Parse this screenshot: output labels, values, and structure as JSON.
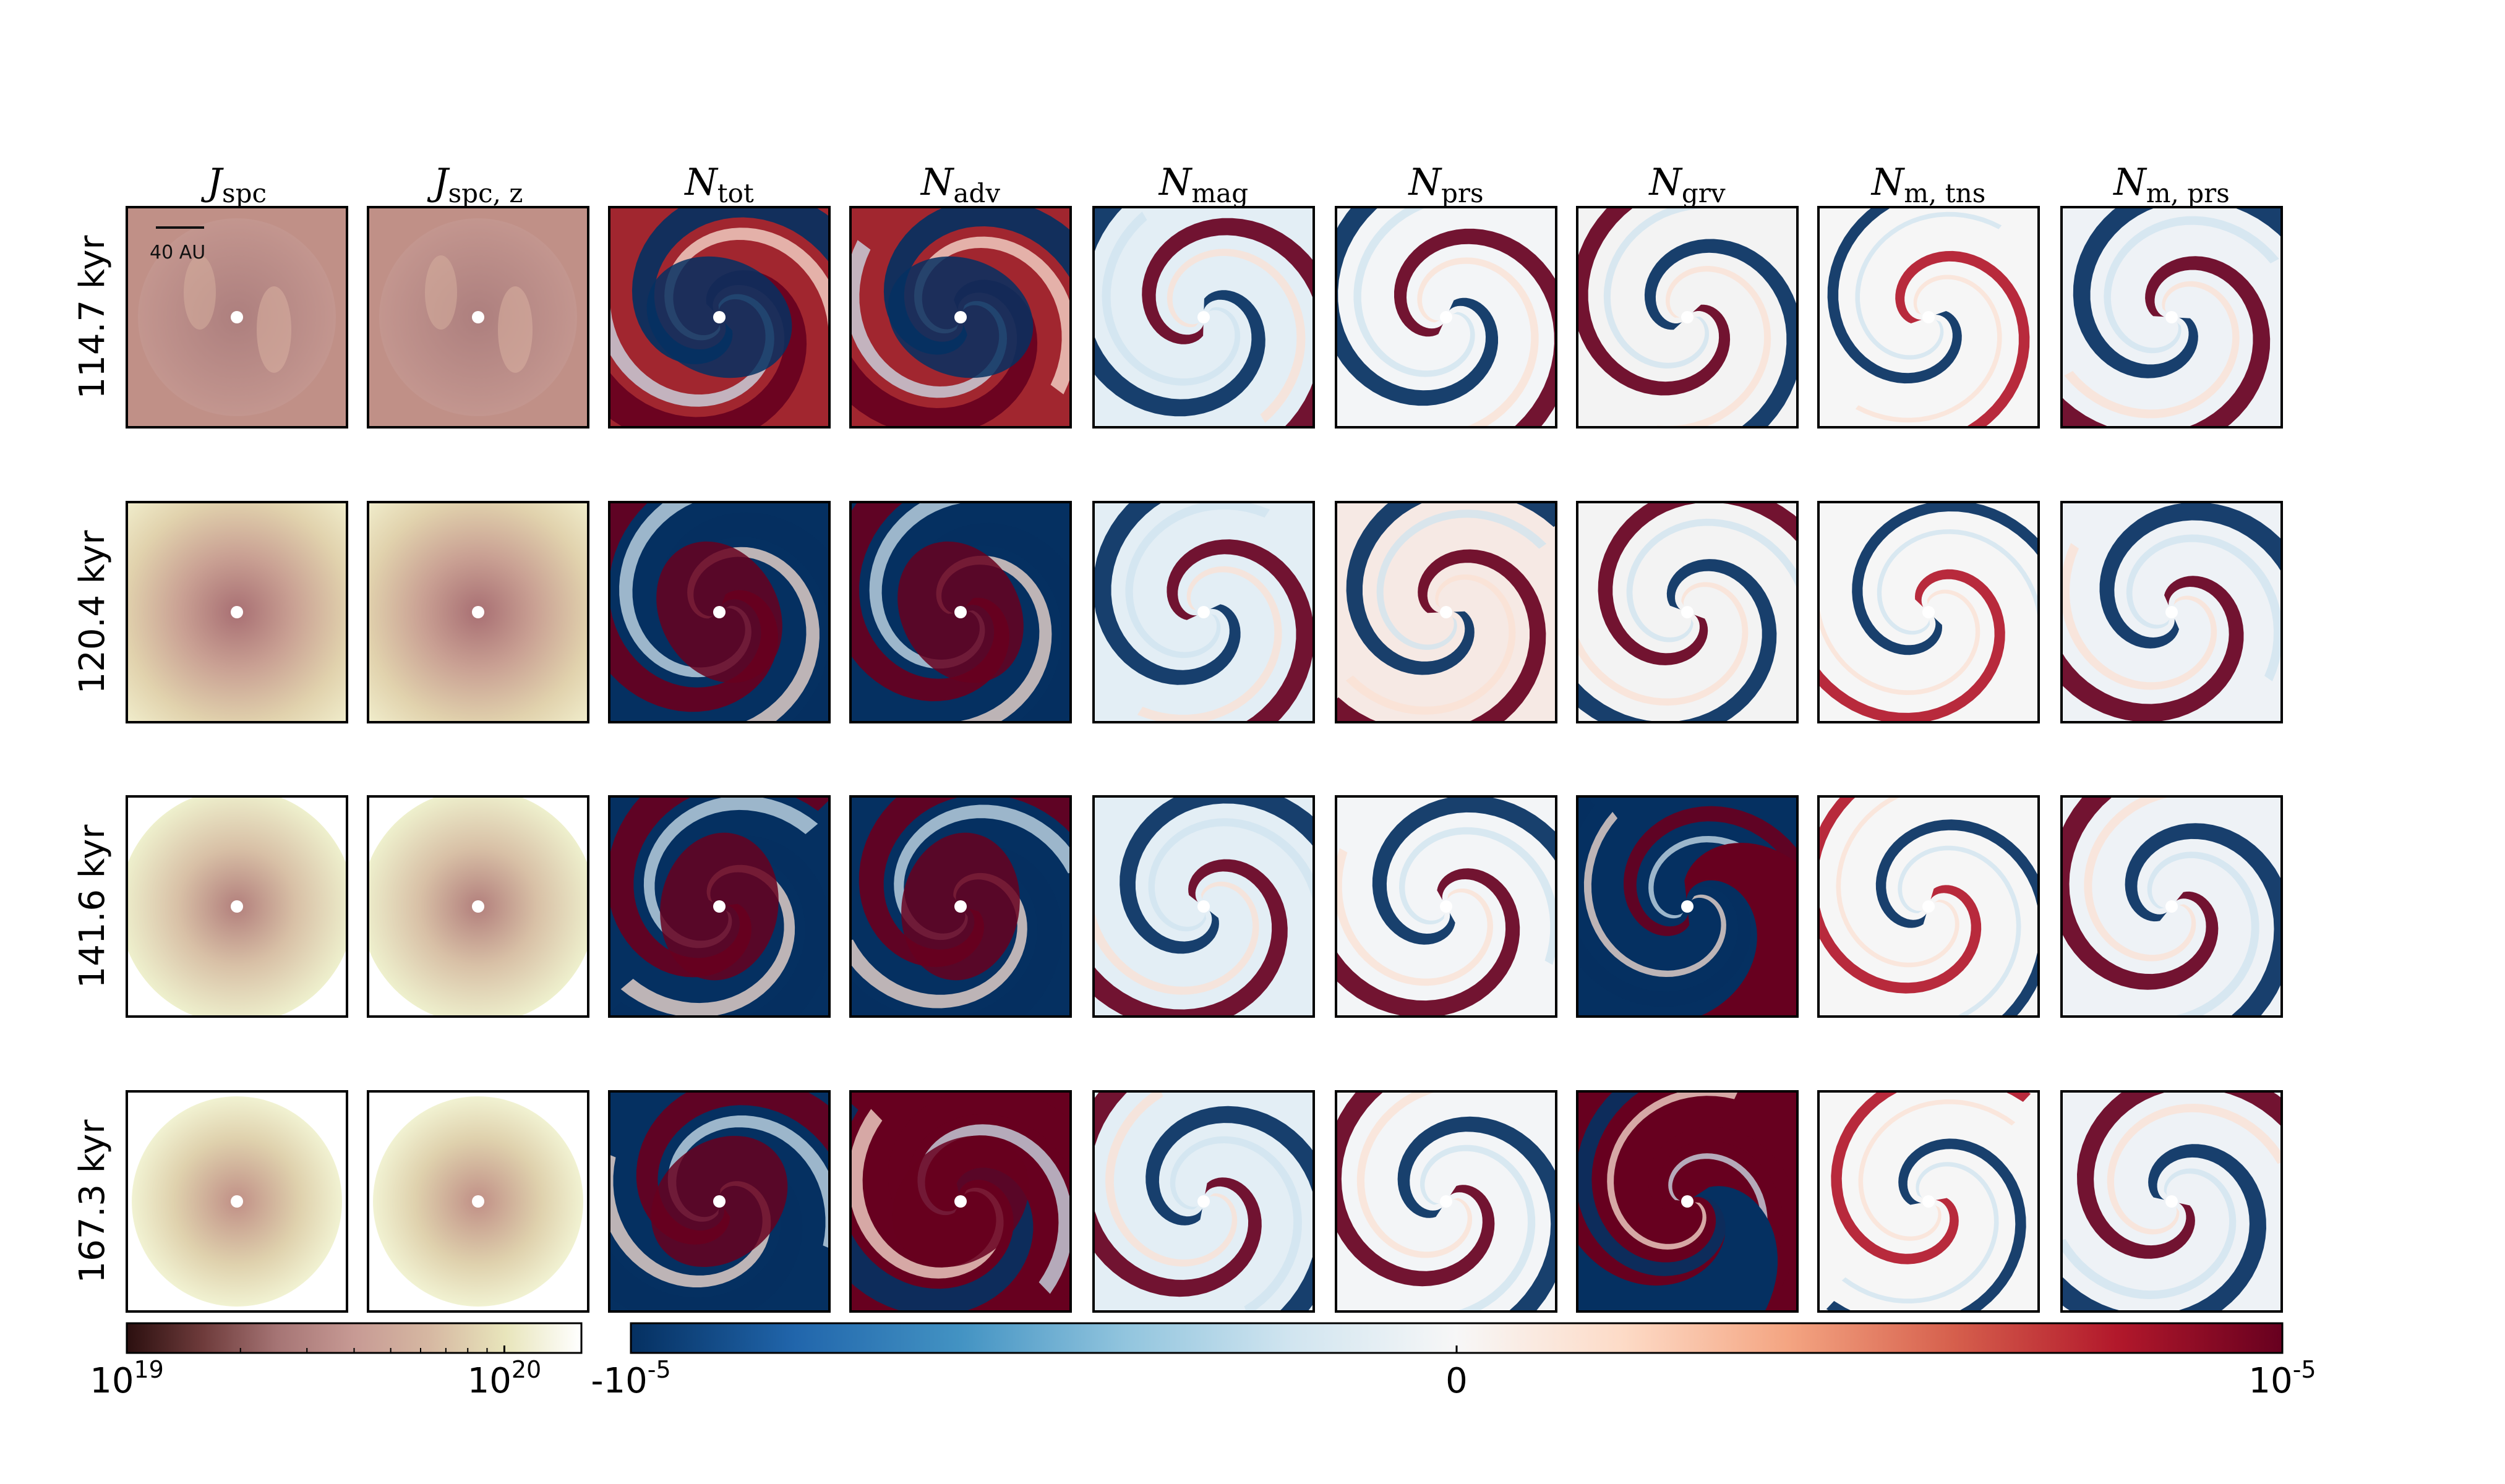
{
  "chart_data": {
    "type": "heatmap",
    "columns": [
      {
        "key": "J_spc",
        "symbol": "J",
        "subscript": "spc",
        "colormap": "pink"
      },
      {
        "key": "J_spc_z",
        "symbol": "J",
        "subscript": "spc, z",
        "colormap": "pink"
      },
      {
        "key": "N_tot",
        "symbol": "N",
        "subscript": "tot",
        "colormap": "RdBu_r"
      },
      {
        "key": "N_adv",
        "symbol": "N",
        "subscript": "adv",
        "colormap": "RdBu_r"
      },
      {
        "key": "N_mag",
        "symbol": "N",
        "subscript": "mag",
        "colormap": "RdBu_r"
      },
      {
        "key": "N_prs",
        "symbol": "N",
        "subscript": "prs",
        "colormap": "RdBu_r"
      },
      {
        "key": "N_grv",
        "symbol": "N",
        "subscript": "grv",
        "colormap": "RdBu_r"
      },
      {
        "key": "N_m_tns",
        "symbol": "N",
        "subscript": "m, tns",
        "colormap": "RdBu_r"
      },
      {
        "key": "N_m_prs",
        "symbol": "N",
        "subscript": "m, prs",
        "colormap": "RdBu_r"
      }
    ],
    "rows": [
      "114.7 kyr",
      "120.4 kyr",
      "141.6 kyr",
      "167.3 kyr"
    ],
    "scale_bar_label": "40 AU",
    "colorbar_J": {
      "scale": "log",
      "range": [
        1e+19,
        1.6e+20
      ],
      "colors": [
        "#2b0f0f",
        "#6e3b3b",
        "#a67575",
        "#c79a94",
        "#d6b8a2",
        "#e8e5bb",
        "#ffffff"
      ],
      "ticks": [
        {
          "base": "10",
          "exp": "19",
          "value": 1e+19
        },
        {
          "base": "10",
          "exp": "20",
          "value": 1e+20
        }
      ]
    },
    "colorbar_N": {
      "scale": "linear",
      "range": [
        -1e-05,
        1e-05
      ],
      "colors": [
        "#053061",
        "#2166ac",
        "#4393c3",
        "#92c5de",
        "#d1e5f0",
        "#f7f7f7",
        "#fddbc7",
        "#f4a582",
        "#d6604d",
        "#b2182b",
        "#67001f"
      ],
      "ticks": [
        {
          "base": "-10",
          "exp": "-5",
          "value": -1e-05
        },
        {
          "base": "0",
          "exp": "",
          "value": 0
        },
        {
          "base": "10",
          "exp": "-5",
          "value": 1e-05
        }
      ]
    }
  }
}
